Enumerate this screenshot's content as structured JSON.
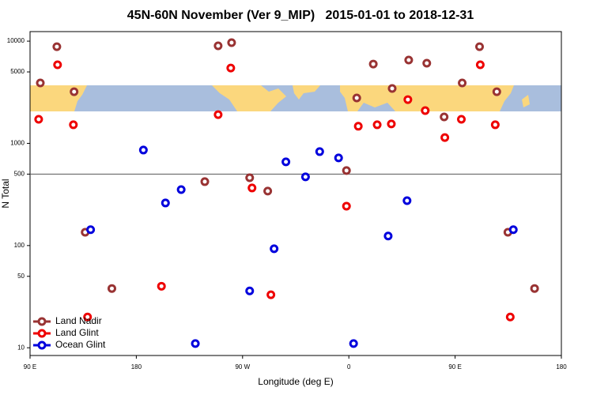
{
  "chart_data": {
    "type": "scatter",
    "title": "45N-60N November (Ver 9_MIP)   2015-01-01 to 2018-12-31",
    "x_label": "Longitude (deg E)",
    "y_label": "N Total",
    "log_y": true,
    "xlim": [
      90,
      540
    ],
    "ylim": [
      8.4,
      12400
    ],
    "xticks": [
      {
        "value": 90,
        "label": "90 E"
      },
      {
        "value": 180,
        "label": "180"
      },
      {
        "value": 270,
        "label": "90 W"
      },
      {
        "value": 360,
        "label": "0"
      },
      {
        "value": 450,
        "label": "90 E"
      },
      {
        "value": 540,
        "label": "180"
      }
    ],
    "yticks": [
      10,
      50,
      100,
      500,
      1000,
      5000,
      10000
    ],
    "hline": 500,
    "legend": "bottom-left",
    "series": [
      {
        "name": "Land Nadir",
        "color": "#993333",
        "x": [
          98.7,
          112.7,
          127.3,
          136.7,
          159.3,
          238,
          249.3,
          260.7,
          276,
          291.3,
          358,
          366.7,
          380.7,
          396.7,
          410.7,
          426,
          440.7,
          456,
          470.7,
          485.3,
          494.7,
          517.3
        ],
        "values": [
          3900,
          8830,
          3200,
          135,
          38,
          422,
          9000,
          9660,
          461,
          341,
          542,
          2780,
          5970,
          3440,
          6530,
          6080,
          1815,
          3900,
          8830,
          3200,
          135,
          38
        ]
      },
      {
        "name": "Land Glint",
        "color": "#ee0000",
        "x": [
          97.3,
          113.3,
          126.7,
          138.7,
          201.3,
          249.3,
          260,
          278,
          294,
          358,
          368,
          384,
          396,
          410,
          424.7,
          441.3,
          455.3,
          471.3,
          484,
          496.7
        ],
        "values": [
          1720,
          5870,
          1520,
          20,
          40,
          1910,
          5460,
          366,
          33,
          243,
          1470,
          1520,
          1550,
          2680,
          2090,
          1140,
          1720,
          5870,
          1520,
          20
        ]
      },
      {
        "name": "Ocean Glint",
        "color": "#0000dd",
        "x": [
          141.3,
          186,
          204.7,
          218,
          230,
          276,
          296.7,
          306.7,
          323.3,
          335.3,
          351.3,
          364,
          393.3,
          409.3,
          499.3
        ],
        "values": [
          143,
          860,
          261,
          353,
          11,
          36,
          93,
          659,
          470,
          830,
          720,
          11,
          124,
          275,
          143
        ]
      }
    ]
  }
}
